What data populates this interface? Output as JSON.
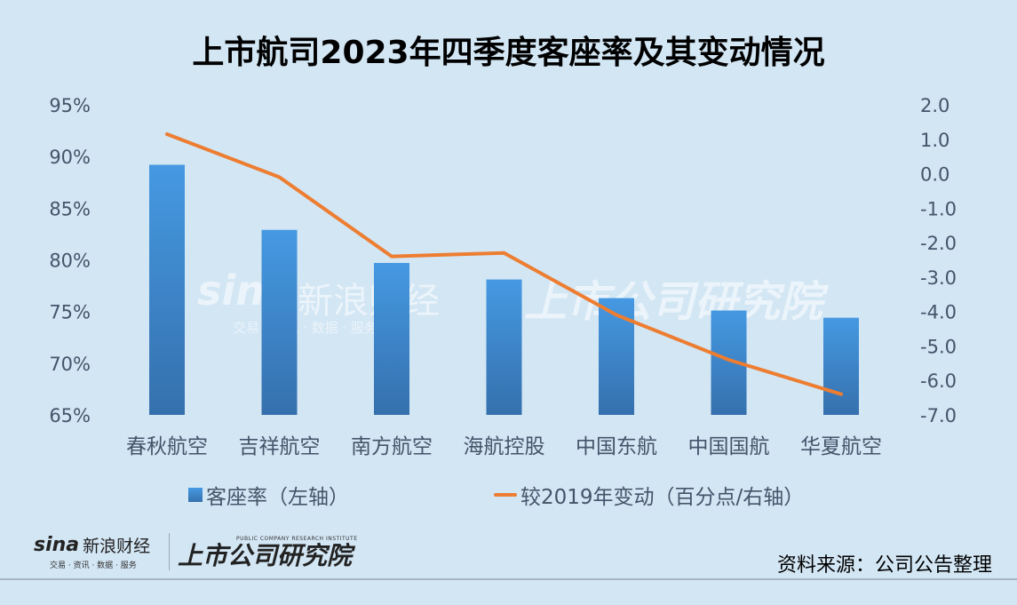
{
  "title": "上市航司2023年四季度客座率及其变动情况",
  "chart_data": {
    "type": "bar+line",
    "title": "上市航司2023年四季度客座率及其变动情况",
    "categories": [
      "春秋航空",
      "吉祥航空",
      "南方航空",
      "海航控股",
      "中国东航",
      "中国国航",
      "华夏航空"
    ],
    "series": [
      {
        "name": "客座率（左轴）",
        "type": "bar",
        "axis": "left",
        "unit": "%",
        "color": "#4191dc",
        "values": [
          89.2,
          82.9,
          79.7,
          78.1,
          76.3,
          75.1,
          74.4
        ]
      },
      {
        "name": "较2019年变动（百分点/右轴）",
        "type": "line",
        "axis": "right",
        "unit": "百分点",
        "color": "#ed7d31",
        "values": [
          1.15,
          -0.1,
          -2.4,
          -2.3,
          -4.1,
          -5.4,
          -6.4
        ]
      }
    ],
    "left_axis": {
      "min": 65,
      "max": 95,
      "step": 5,
      "tick_labels": [
        "95%",
        "90%",
        "85%",
        "80%",
        "75%",
        "70%",
        "65%"
      ]
    },
    "right_axis": {
      "min": -7.0,
      "max": 2.0,
      "step": 1.0,
      "tick_labels": [
        "2.0",
        "1.0",
        "0.0",
        "-1.0",
        "-2.0",
        "-3.0",
        "-4.0",
        "-5.0",
        "-6.0",
        "-7.0"
      ]
    },
    "grid": false,
    "legend_position": "bottom"
  },
  "legend": {
    "bar_label": "客座率（左轴）",
    "line_label": "较2019年变动（百分点/右轴）"
  },
  "watermarks": {
    "sina": "sina",
    "sina_cn": "新浪财经",
    "sina_sub": "交易 · 资讯 · 数据 · 服务",
    "institute": "上市公司研究院",
    "institute_en": "PUBLIC COMPANY RESEARCH INSTITUTE"
  },
  "footer": {
    "sina_brand": "sina",
    "sina_cn": "新浪财经",
    "sina_sub": "交易 · 资讯 · 数据 · 服务",
    "institute": "上市公司研究院",
    "institute_en": "PUBLIC COMPANY RESEARCH INSTITUTE",
    "source": "资料来源：公司公告整理"
  },
  "colors": {
    "background": "#d3e6f4",
    "bar_top": "#4599e2",
    "bar_bottom": "#3570ad",
    "line": "#ed7d31",
    "axis_text": "#44546a"
  }
}
